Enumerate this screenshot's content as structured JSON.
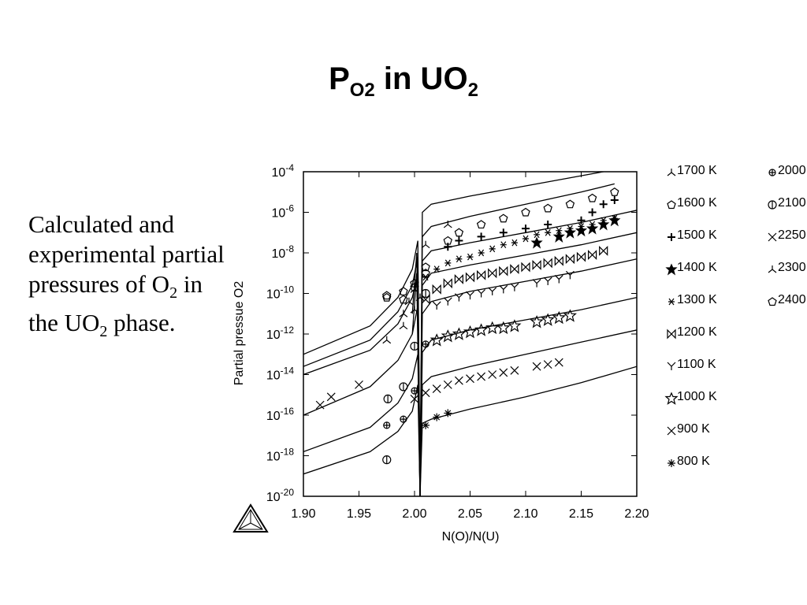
{
  "slide": {
    "title_main": "P",
    "title_sub": "O2",
    "title_rest": " in UO",
    "title_sub2": "2",
    "caption_line1": "Calculated and experimental partial pressures of O",
    "caption_sub1": "2",
    "caption_line2": " in the UO",
    "caption_sub2": "2",
    "caption_line3": " phase."
  },
  "chart_data": {
    "type": "scatter",
    "title": "",
    "xlabel": "N(O)/N(U)",
    "ylabel": "Partial pressue O2",
    "xlim": [
      1.9,
      2.2
    ],
    "ylim_log10": [
      -20,
      -4
    ],
    "yscale": "log",
    "x_ticks": [
      "1.90",
      "1.95",
      "2.00",
      "2.05",
      "2.10",
      "2.15",
      "2.20"
    ],
    "y_tick_exponents": [
      "-4",
      "-6",
      "-8",
      "-10",
      "-12",
      "-14",
      "-16",
      "-18",
      "-20"
    ],
    "legend_placement": "right",
    "legend": [
      {
        "label": "1700 K",
        "symbol": "tri-inverted"
      },
      {
        "label": "1600 K",
        "symbol": "pentagon"
      },
      {
        "label": "1500 K",
        "symbol": "plus"
      },
      {
        "label": "1400 K",
        "symbol": "star-filled"
      },
      {
        "label": "1300 K",
        "symbol": "x-small"
      },
      {
        "label": "1200 K",
        "symbol": "bowtie"
      },
      {
        "label": "1100 K",
        "symbol": "y"
      },
      {
        "label": "1000 K",
        "symbol": "star-outline"
      },
      {
        "label": "900 K",
        "symbol": "x"
      },
      {
        "label": "800 K",
        "symbol": "asterisk"
      },
      {
        "label": "2000",
        "symbol": "flower"
      },
      {
        "label": "2100",
        "symbol": "circle-bar"
      },
      {
        "label": "2250",
        "symbol": "x"
      },
      {
        "label": "2300",
        "symbol": "tri-inverted"
      },
      {
        "label": "2400",
        "symbol": "pentagon"
      }
    ],
    "calculated_curves": [
      {
        "name": "800 K",
        "x": [
          1.9,
          1.96,
          1.985,
          1.998,
          2.003,
          2.005,
          2.007,
          2.015,
          2.05,
          2.1,
          2.15,
          2.2
        ],
        "y_log10": [
          -18.9,
          -17.8,
          -16.8,
          -15.8,
          -14.5,
          -20,
          -16.4,
          -16.2,
          -15.7,
          -15.1,
          -14.4,
          -13.6
        ]
      },
      {
        "name": "900 K",
        "x": [
          1.9,
          1.96,
          1.985,
          1.998,
          2.003,
          2.005,
          2.007,
          2.015,
          2.05,
          2.1,
          2.15,
          2.2
        ],
        "y_log10": [
          -17.8,
          -16.6,
          -15.4,
          -14.2,
          -13.0,
          -20,
          -14.5,
          -14.1,
          -13.6,
          -13.0,
          -12.4,
          -11.8
        ]
      },
      {
        "name": "1000 K",
        "x": [
          1.9,
          1.96,
          1.985,
          1.998,
          2.003,
          2.005,
          2.007,
          2.015,
          2.05,
          2.1,
          2.15,
          2.2
        ],
        "y_log10": [
          -16.0,
          -14.6,
          -13.3,
          -12.0,
          -10.6,
          -20,
          -12.9,
          -12.3,
          -11.8,
          -11.3,
          -10.8,
          -10.2
        ]
      },
      {
        "name": "1100 K",
        "x": [
          1.9,
          1.96,
          1.985,
          1.998,
          2.003,
          2.005,
          2.007,
          2.015,
          2.05,
          2.1,
          2.15,
          2.2
        ],
        "y_log10": [
          -14.0,
          -12.8,
          -11.5,
          -10.2,
          -9.0,
          -20,
          -11.0,
          -10.4,
          -9.9,
          -9.4,
          -8.9,
          -8.3
        ]
      },
      {
        "name": "1200 K",
        "x": [
          1.9,
          1.96,
          1.985,
          1.998,
          2.003,
          2.005,
          2.007,
          2.015,
          2.05,
          2.1,
          2.15,
          2.2
        ],
        "y_log10": [
          -13.6,
          -12.3,
          -10.9,
          -9.6,
          -8.2,
          -20,
          -9.6,
          -9.0,
          -8.6,
          -8.1,
          -7.6,
          -7.0
        ]
      },
      {
        "name": "1300 K",
        "x": [
          1.9,
          1.96,
          1.985,
          1.998,
          2.003,
          2.005,
          2.007,
          2.015,
          2.05,
          2.1,
          2.15,
          2.2
        ],
        "y_log10": [
          -13.0,
          -11.6,
          -10.2,
          -8.8,
          -7.4,
          -20,
          -8.4,
          -7.9,
          -7.5,
          -7.0,
          -6.5,
          -5.9
        ]
      },
      {
        "name": "1500 K",
        "x": [
          1.998,
          2.002,
          2.005,
          2.007,
          2.015,
          2.05,
          2.1,
          2.15,
          2.18
        ],
        "y_log10": [
          -12.0,
          -9.0,
          -20,
          -7.2,
          -6.7,
          -6.2,
          -5.6,
          -5.0,
          -4.6
        ]
      },
      {
        "name": "1700 K",
        "x": [
          1.998,
          2.002,
          2.005,
          2.007,
          2.015,
          2.05,
          2.1,
          2.15,
          2.18
        ],
        "y_log10": [
          -11.0,
          -8.0,
          -20,
          -6.0,
          -5.6,
          -5.2,
          -4.7,
          -4.2,
          -3.9
        ]
      }
    ],
    "experimental": [
      {
        "series": "800 K",
        "x": [
          2.01,
          2.02,
          2.03
        ],
        "y_log10": [
          -16.5,
          -16.1,
          -15.9
        ]
      },
      {
        "series": "900 K",
        "x": [
          1.915,
          1.925,
          1.95,
          2.0,
          2.01,
          2.02,
          2.03,
          2.04,
          2.05,
          2.06,
          2.07,
          2.08,
          2.09,
          2.11,
          2.12,
          2.13
        ],
        "y_log10": [
          -15.5,
          -15.1,
          -14.5,
          -15.2,
          -14.9,
          -14.7,
          -14.5,
          -14.3,
          -14.2,
          -14.1,
          -14.0,
          -13.9,
          -13.8,
          -13.6,
          -13.5,
          -13.4
        ]
      },
      {
        "series": "1000 K",
        "x": [
          2.02,
          2.03,
          2.04,
          2.05,
          2.06,
          2.07,
          2.08,
          2.09,
          2.11,
          2.12,
          2.13,
          2.14
        ],
        "y_log10": [
          -12.3,
          -12.1,
          -12.0,
          -11.9,
          -11.8,
          -11.7,
          -11.7,
          -11.6,
          -11.4,
          -11.3,
          -11.2,
          -11.1
        ]
      },
      {
        "series": "1100 K",
        "x": [
          2.02,
          2.03,
          2.04,
          2.05,
          2.06,
          2.07,
          2.08,
          2.09,
          2.11,
          2.12,
          2.13,
          2.14
        ],
        "y_log10": [
          -10.6,
          -10.4,
          -10.2,
          -10.1,
          -10.0,
          -9.9,
          -9.8,
          -9.7,
          -9.5,
          -9.4,
          -9.3,
          -9.1
        ]
      },
      {
        "series": "1200 K",
        "x": [
          2.01,
          2.02,
          2.03,
          2.04,
          2.05,
          2.06,
          2.07,
          2.08,
          2.09,
          2.1,
          2.11,
          2.12,
          2.13,
          2.14,
          2.15,
          2.16,
          2.17
        ],
        "y_log10": [
          -10.3,
          -9.8,
          -9.5,
          -9.3,
          -9.2,
          -9.1,
          -9.0,
          -8.9,
          -8.8,
          -8.7,
          -8.6,
          -8.5,
          -8.4,
          -8.3,
          -8.2,
          -8.1,
          -7.9
        ]
      },
      {
        "series": "1300 K",
        "x": [
          2.01,
          2.02,
          2.03,
          2.04,
          2.05,
          2.06,
          2.07,
          2.08,
          2.09,
          2.1,
          2.11,
          2.12,
          2.13,
          2.14,
          2.15,
          2.16,
          2.17,
          2.18
        ],
        "y_log10": [
          -9.2,
          -8.8,
          -8.5,
          -8.3,
          -8.2,
          -8.0,
          -7.8,
          -7.6,
          -7.5,
          -7.3,
          -7.1,
          -7.0,
          -6.9,
          -6.8,
          -6.7,
          -6.6,
          -6.4,
          -6.3
        ]
      },
      {
        "series": "1400 K",
        "x": [
          2.11,
          2.13,
          2.14,
          2.15,
          2.16,
          2.17,
          2.18
        ],
        "y_log10": [
          -7.5,
          -7.2,
          -7.0,
          -6.9,
          -6.8,
          -6.6,
          -6.4
        ]
      },
      {
        "series": "1500 K",
        "x": [
          2.03,
          2.04,
          2.06,
          2.08,
          2.1,
          2.12,
          2.15,
          2.16,
          2.17,
          2.18
        ],
        "y_log10": [
          -7.7,
          -7.4,
          -7.2,
          -7.0,
          -6.8,
          -6.6,
          -6.4,
          -6.0,
          -5.6,
          -5.4
        ]
      },
      {
        "series": "1600 K",
        "x": [
          1.975,
          1.99,
          2.0,
          2.01,
          2.03,
          2.04,
          2.06,
          2.08,
          2.1,
          2.12,
          2.14,
          2.16,
          2.18
        ],
        "y_log10": [
          -10.1,
          -9.9,
          -9.5,
          -8.7,
          -7.4,
          -7.0,
          -6.6,
          -6.3,
          -6.0,
          -5.8,
          -5.6,
          -5.3,
          -5.0
        ]
      },
      {
        "series": "1700 K",
        "x": [
          1.99,
          2.0,
          2.005,
          2.01,
          2.03
        ],
        "y_log10": [
          -11.6,
          -10.8,
          -10.2,
          -7.6,
          -6.6
        ]
      },
      {
        "series": "2000",
        "x": [
          1.975,
          1.99,
          2.0,
          2.01
        ],
        "y_log10": [
          -16.5,
          -16.2,
          -14.8,
          -12.5
        ]
      },
      {
        "series": "2100",
        "x": [
          1.975,
          1.976,
          1.99,
          2.0,
          2.01
        ],
        "y_log10": [
          -18.2,
          -15.2,
          -14.6,
          -12.6,
          -10.0
        ]
      },
      {
        "series": "2300",
        "x": [
          1.975,
          1.99,
          1.995,
          2.0
        ],
        "y_log10": [
          -12.3,
          -11.0,
          -10.4,
          -9.8
        ]
      },
      {
        "series": "2400",
        "x": [
          1.975,
          1.99,
          2.0,
          2.01
        ],
        "y_log10": [
          -10.2,
          -10.3,
          -9.7,
          -9.0
        ]
      }
    ]
  }
}
